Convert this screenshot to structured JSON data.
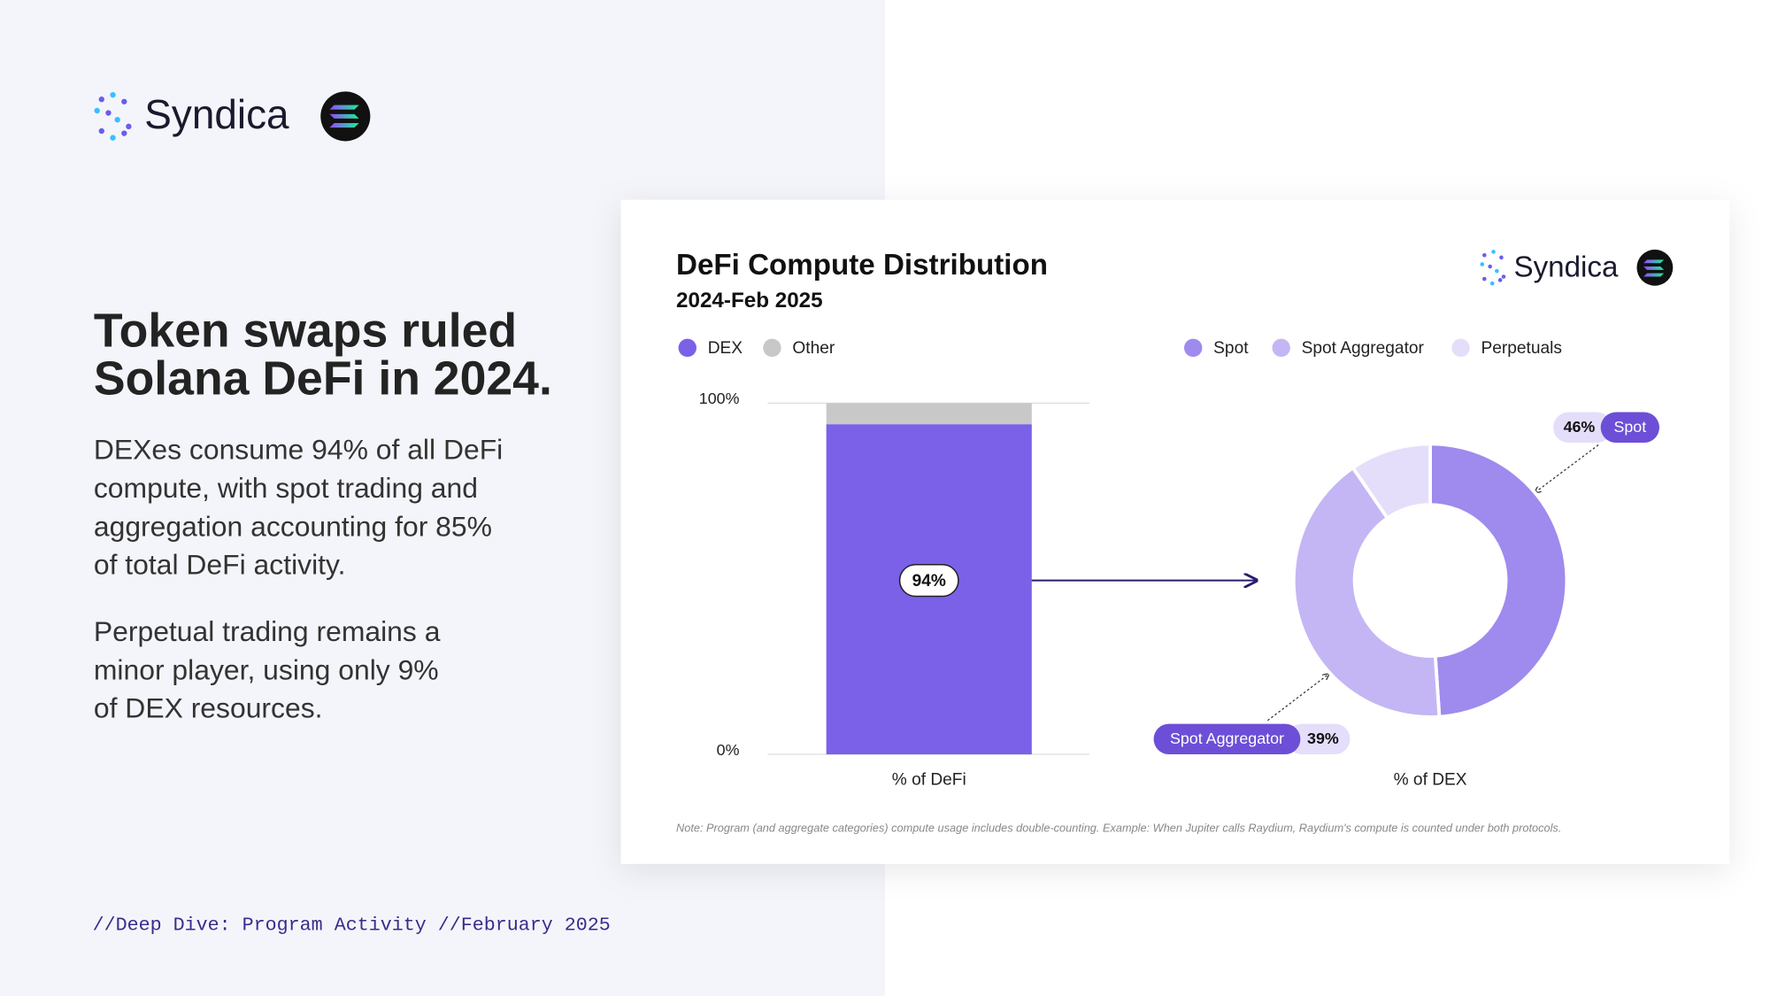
{
  "brand": "Syndica",
  "headline": [
    "Token swaps ruled",
    "Solana DeFi in 2024."
  ],
  "paragraphs": [
    [
      "DEXes consume 94% of all DeFi",
      "compute, with spot trading and",
      "aggregation accounting for 85%",
      "of total DeFi activity."
    ],
    [
      "Perpetual trading remains a",
      "minor player, using only 9%",
      "of DEX resources."
    ]
  ],
  "footer": "//Deep Dive: Program Activity //February 2025",
  "chart_data": [
    {
      "type": "bar",
      "title": "DeFi Compute Distribution",
      "subtitle": "2024-Feb 2025",
      "stacked": true,
      "categories": [
        "% of DeFi"
      ],
      "series": [
        {
          "name": "DEX",
          "color": "#7b61e8",
          "values": [
            94
          ],
          "value_labels": [
            "94%"
          ]
        },
        {
          "name": "Other",
          "color": "#c8c8c8",
          "values": [
            6
          ]
        }
      ],
      "ylim": [
        0,
        100
      ],
      "yticks": [
        {
          "value": 0,
          "label": "0%"
        },
        {
          "value": 100,
          "label": "100%"
        }
      ],
      "grid": true,
      "note": "Note: Program (and aggregate categories) compute usage includes double-counting. Example: When Jupiter calls Raydium, Raydium's compute is counted under both protocols."
    },
    {
      "type": "donut",
      "xlabel": "% of DEX",
      "categories": [
        "Spot",
        "Spot Aggregator",
        "Perpetuals"
      ],
      "values": [
        46,
        39,
        9
      ],
      "value_labels": [
        "46%",
        "39%",
        null
      ],
      "colors": [
        "#9f8aee",
        "#c4b6f5",
        "#e4defb"
      ]
    }
  ]
}
